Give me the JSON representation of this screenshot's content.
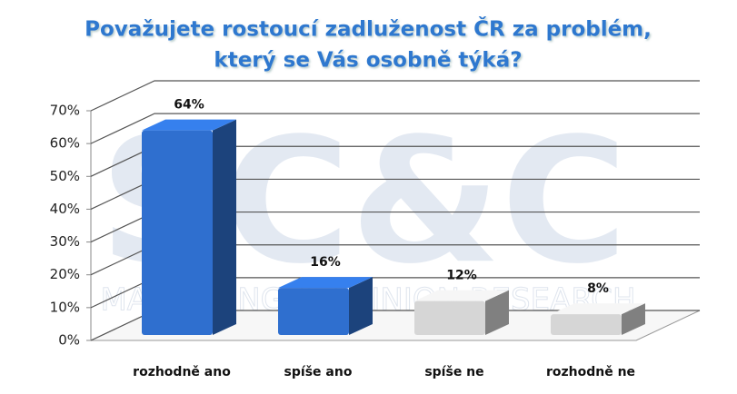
{
  "chart_data": {
    "type": "bar3d",
    "title": [
      "Považujete rostoucí zadluženost ČR za problém,",
      "který se Vás osobně týká?"
    ],
    "watermark": "SC&C",
    "watermark_subtitle": "MARKETING & OPINION RESEARCH",
    "categories": [
      "rozhodně ano",
      "spíše ano",
      "spíše ne",
      "rozhodně ne"
    ],
    "values": [
      64,
      16,
      12,
      8
    ],
    "value_labels": [
      "64%",
      "16%",
      "12%",
      "8%"
    ],
    "colors": [
      "#2f6fcf",
      "#2f6fcf",
      "#d6d6d6",
      "#d6d6d6"
    ],
    "ylim": [
      0,
      70
    ],
    "yticks": [
      {
        "value": 0,
        "label": "0%"
      },
      {
        "value": 10,
        "label": "10%"
      },
      {
        "value": 20,
        "label": "20%"
      },
      {
        "value": 30,
        "label": "30%"
      },
      {
        "value": 40,
        "label": "40%"
      },
      {
        "value": 50,
        "label": "50%"
      },
      {
        "value": 60,
        "label": "60%"
      },
      {
        "value": 70,
        "label": "70%"
      }
    ],
    "grid": true
  }
}
